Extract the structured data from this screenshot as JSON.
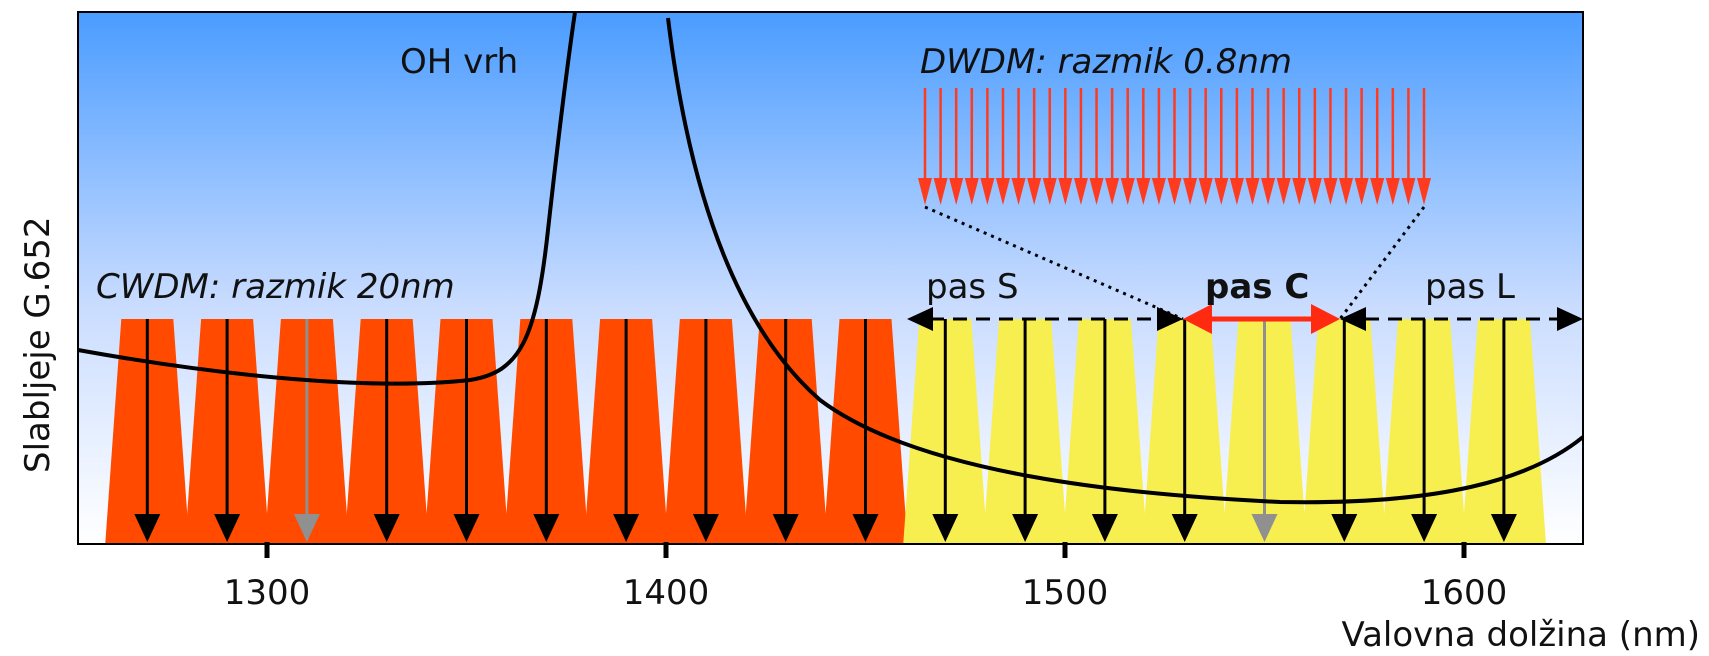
{
  "ylabel": "Slabljeje G.652",
  "xlabel": "Valovna dolžina  (nm)",
  "xticks": [
    "1300",
    "1400",
    "1500",
    "1600"
  ],
  "labels": {
    "oh_peak": "OH vrh",
    "dwdm": "DWDM: razmik 0.8nm",
    "cwdm": "CWDM: razmik 20nm",
    "band_s": "pas S",
    "band_c": "pas C",
    "band_l": "pas L"
  },
  "x_range_nm": [
    1250,
    1627
  ],
  "cwdm_channels_nm": [
    1270,
    1290,
    1310,
    1330,
    1350,
    1370,
    1390,
    1410,
    1430,
    1450,
    1470,
    1490,
    1510,
    1530,
    1550,
    1570,
    1590,
    1610
  ],
  "highlighted_channels_nm": [
    1310,
    1550
  ],
  "bands_nm": {
    "S": [
      1460,
      1530
    ],
    "C": [
      1530,
      1565
    ],
    "L": [
      1565,
      1625
    ]
  },
  "dwdm_channel_count": 33,
  "colors": {
    "sky_top": "#4a9cff",
    "sky_bottom": "#ffffff",
    "cwdm_orange": "#ff4a00",
    "cwdm_yellow": "#f7ee50",
    "dwdm_red": "#ff3b1f",
    "c_band_red": "#ff2a10",
    "highlight_gray": "#909090",
    "curve": "#000000"
  }
}
